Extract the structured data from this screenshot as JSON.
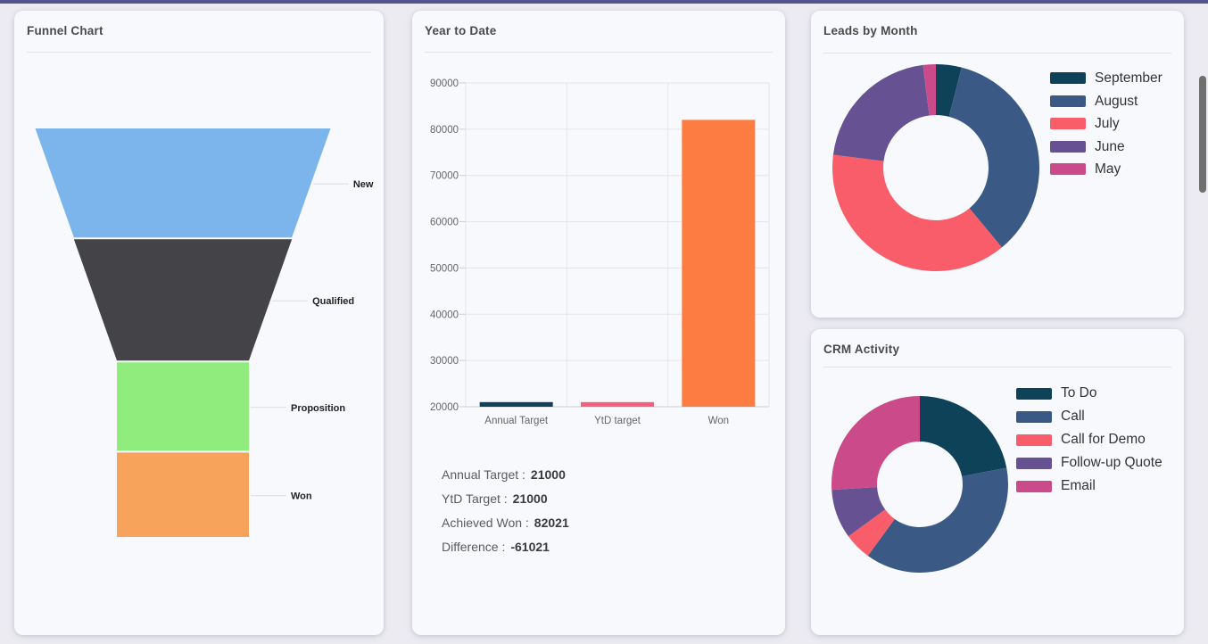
{
  "topbar": {
    "color": "#56528e"
  },
  "cards": {
    "funnel": {
      "title": "Funnel Chart"
    },
    "ytd": {
      "title": "Year to Date",
      "summary": [
        {
          "label": "Annual Target :",
          "value": "21000"
        },
        {
          "label": "YtD Target :",
          "value": "21000"
        },
        {
          "label": "Achieved Won :",
          "value": "82021"
        },
        {
          "label": "Difference :",
          "value": "-61021"
        }
      ]
    },
    "leads": {
      "title": "Leads by Month"
    },
    "crm": {
      "title": "CRM Activity"
    }
  },
  "chart_data": [
    {
      "type": "funnel",
      "title": "Funnel Chart",
      "categories": [
        "New",
        "Qualified",
        "Proposition",
        "Won"
      ],
      "values": [
        27,
        30,
        22,
        21
      ],
      "values_unit": "relative stage height, percent (estimated from pixels)",
      "colors": [
        "#7cb5ec",
        "#434348",
        "#90ed7d",
        "#f7a35c"
      ],
      "labels_position": "right",
      "label_color": "#1f1f1f",
      "connector_color": "#dcdce2"
    },
    {
      "type": "bar",
      "title": "Year to Date",
      "categories": [
        "Annual Target",
        "YtD target",
        "Won"
      ],
      "values": [
        21000,
        21000,
        82021
      ],
      "colors": [
        "#0d4259",
        "#f4617d",
        "#fc7c42"
      ],
      "ylim": [
        20000,
        90000
      ],
      "ytick_step": 10000,
      "grid": true,
      "xlabel": "",
      "ylabel": "",
      "axis_text_color": "#666666",
      "grid_color": "#e4e4ea",
      "axis_line_color": "#cfcfd4"
    },
    {
      "type": "pie",
      "subtype": "donut",
      "title": "Leads by Month",
      "categories": [
        "September",
        "August",
        "July",
        "June",
        "May"
      ],
      "values": [
        4,
        35,
        38,
        21,
        2
      ],
      "values_unit": "percent of whole (estimated from arc angles)",
      "colors": [
        "#0d4259",
        "#3a5a85",
        "#f95d6a",
        "#665192",
        "#cb4b8a"
      ],
      "legend_position": "right",
      "start_angle_deg": 0,
      "direction": "clockwise"
    },
    {
      "type": "pie",
      "subtype": "donut",
      "title": "CRM Activity",
      "categories": [
        "To Do",
        "Call",
        "Call for Demo",
        "Follow-up Quote",
        "Email"
      ],
      "values": [
        22,
        38,
        5,
        9,
        26
      ],
      "values_unit": "percent of whole (estimated from arc angles)",
      "colors": [
        "#0d4259",
        "#3a5a85",
        "#f95d6a",
        "#665192",
        "#cb4b8a"
      ],
      "legend_position": "right",
      "start_angle_deg": 0,
      "direction": "clockwise"
    }
  ]
}
